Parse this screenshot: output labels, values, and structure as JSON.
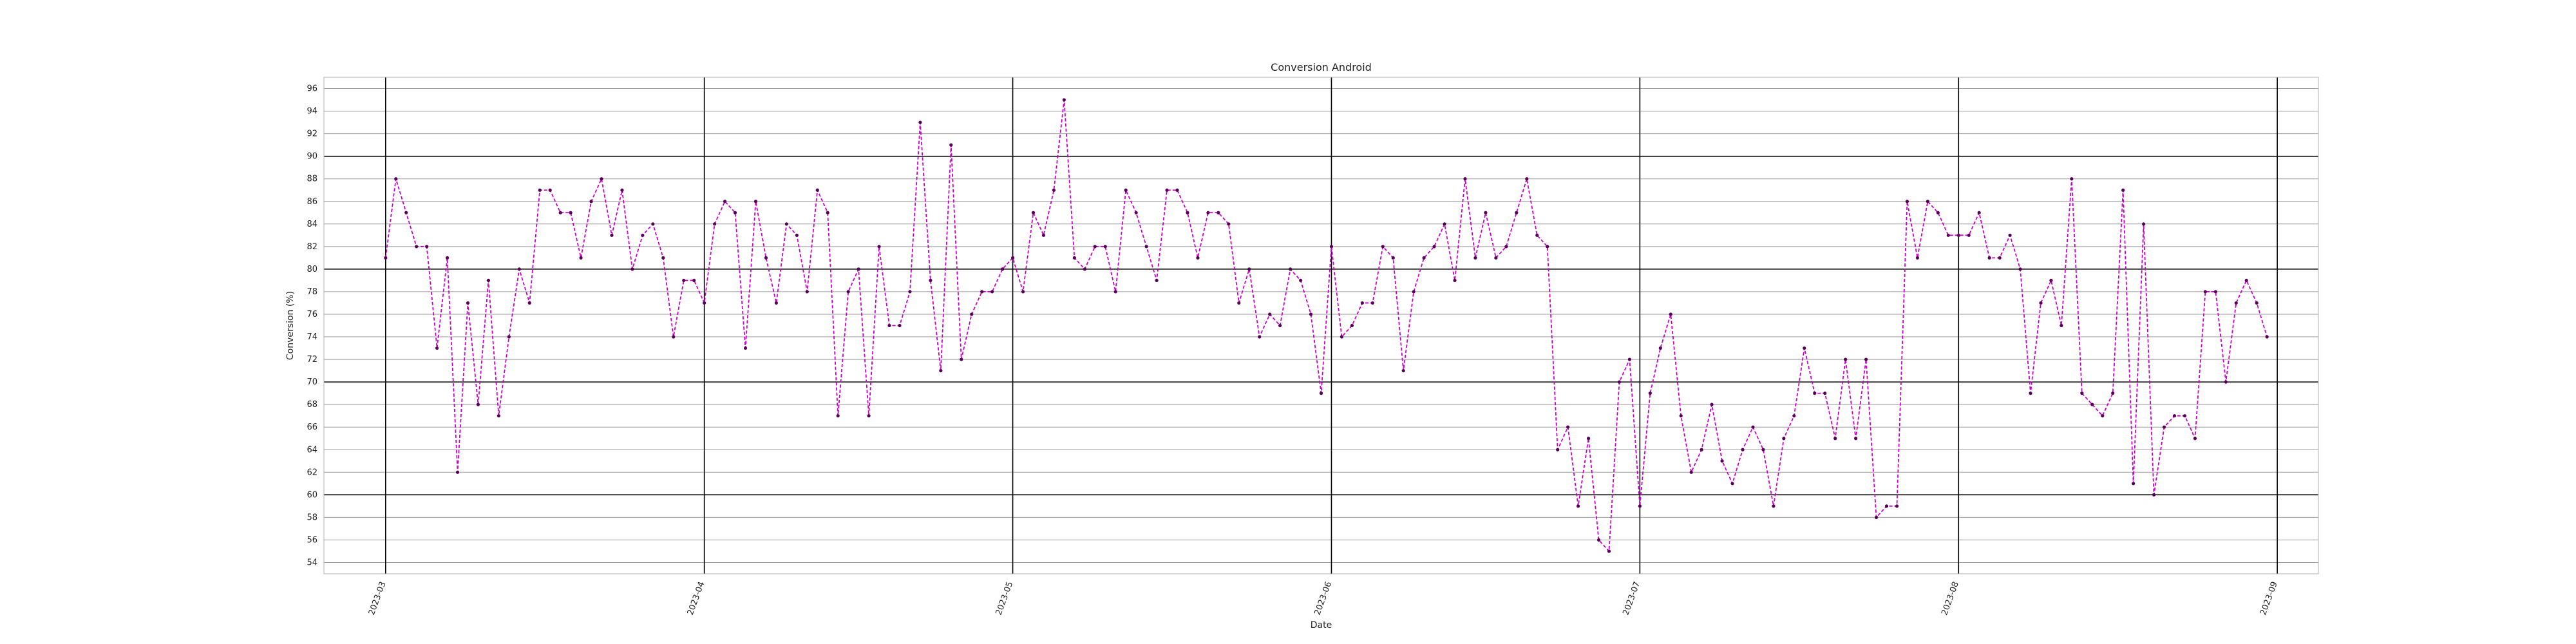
{
  "chart_data": {
    "type": "line",
    "title": "Conversion Android",
    "xlabel": "Date",
    "ylabel": "Conversion (%)",
    "xlim": [
      "2023-02-23",
      "2023-09-05"
    ],
    "ylim": [
      53,
      97
    ],
    "x_ticks": [
      "2023-03",
      "2023-04",
      "2023-05",
      "2023-06",
      "2023-07",
      "2023-08",
      "2023-09"
    ],
    "y_ticks": [
      54,
      56,
      58,
      60,
      62,
      64,
      66,
      68,
      70,
      72,
      74,
      76,
      78,
      80,
      82,
      84,
      86,
      88,
      90,
      92,
      94,
      96
    ],
    "grid": true,
    "line_style": "dashed",
    "colors": {
      "line": "#cc00cc",
      "marker": "#550055",
      "grid_major": "#000000",
      "grid_minor": "#999999"
    },
    "series": [
      {
        "x_start": "2023-03-01",
        "x_step_days": 1,
        "values": [
          81,
          88,
          85,
          82,
          82,
          73,
          81,
          62,
          77,
          68,
          79,
          67,
          74,
          80,
          77,
          87,
          87,
          85,
          85,
          81,
          86,
          88,
          83,
          87,
          80,
          83,
          84,
          81,
          74,
          79,
          79,
          77,
          84,
          86,
          85,
          73,
          86,
          81,
          77,
          84,
          83,
          78,
          87,
          85,
          67,
          78,
          80,
          67,
          82,
          75,
          75,
          78,
          93,
          79,
          71,
          91,
          72,
          76,
          78,
          78,
          80,
          81,
          78,
          85,
          83,
          87,
          95,
          81,
          80,
          82,
          82,
          78,
          87,
          85,
          82,
          79,
          87,
          87,
          85,
          81,
          85,
          85,
          84,
          77,
          80,
          74,
          76,
          75,
          80,
          79,
          76,
          69,
          82,
          74,
          75,
          77,
          77,
          82,
          81,
          71,
          78,
          81,
          82,
          84,
          79,
          88,
          81,
          85,
          81,
          82,
          85,
          88,
          83,
          82,
          64,
          66,
          59,
          65,
          56,
          55,
          70,
          72,
          59,
          69,
          73,
          76,
          67,
          62,
          64,
          68,
          63,
          61,
          64,
          66,
          64,
          59,
          65,
          67,
          73,
          69,
          69,
          65,
          72,
          65,
          72,
          58,
          59,
          59,
          86,
          81,
          86,
          85,
          83,
          83,
          83,
          85,
          81,
          81,
          83,
          80,
          69,
          77,
          79,
          75,
          88,
          69,
          68,
          67,
          69,
          87,
          61,
          84,
          60,
          66,
          67,
          67,
          65,
          78,
          78,
          70,
          77,
          79,
          77,
          74
        ]
      }
    ]
  }
}
